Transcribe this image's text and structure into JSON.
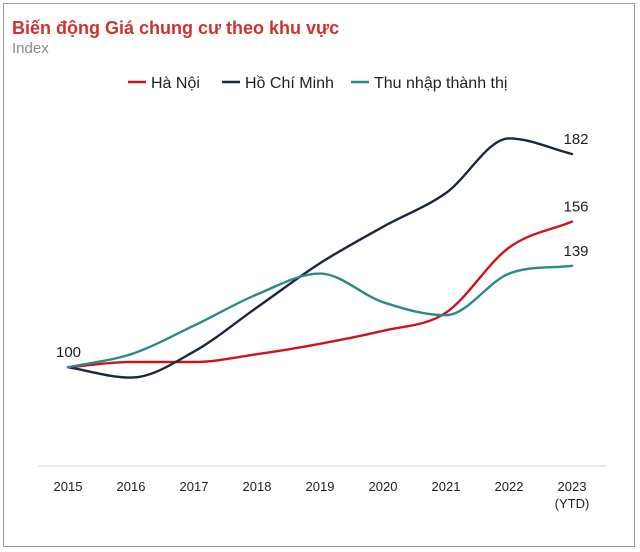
{
  "chart_data": {
    "type": "line",
    "title": "Biến động Giá chung cư theo khu vực",
    "subtitle": "Index",
    "categories": [
      "2015",
      "2016",
      "2017",
      "2018",
      "2019",
      "2020",
      "2021",
      "2022",
      "2023"
    ],
    "category_sublabels": [
      "",
      "",
      "",
      "",
      "",
      "",
      "",
      "",
      "(YTD)"
    ],
    "ylim": [
      62,
      197
    ],
    "grid": false,
    "legend_position": "top",
    "series": [
      {
        "name": "Hà Nội",
        "color": "#c8161d",
        "values": [
          100,
          102,
          102,
          105,
          109,
          114,
          121,
          146,
          156
        ]
      },
      {
        "name": "Hồ Chí Minh",
        "color": "#1a2740",
        "values": [
          100,
          96,
          106,
          123,
          140,
          154,
          167,
          188,
          182
        ]
      },
      {
        "name": "Thu nhập thành thị",
        "color": "#2a8a87",
        "values": [
          100,
          105,
          116,
          128,
          136,
          125,
          120,
          136,
          139
        ]
      }
    ],
    "annotations": [
      {
        "category": "2015",
        "value": 100,
        "text": "100"
      },
      {
        "category": "2023",
        "value": 182,
        "text": "182"
      },
      {
        "category": "2023",
        "value": 156,
        "text": "156"
      },
      {
        "category": "2023",
        "value": 139,
        "text": "139"
      }
    ]
  }
}
